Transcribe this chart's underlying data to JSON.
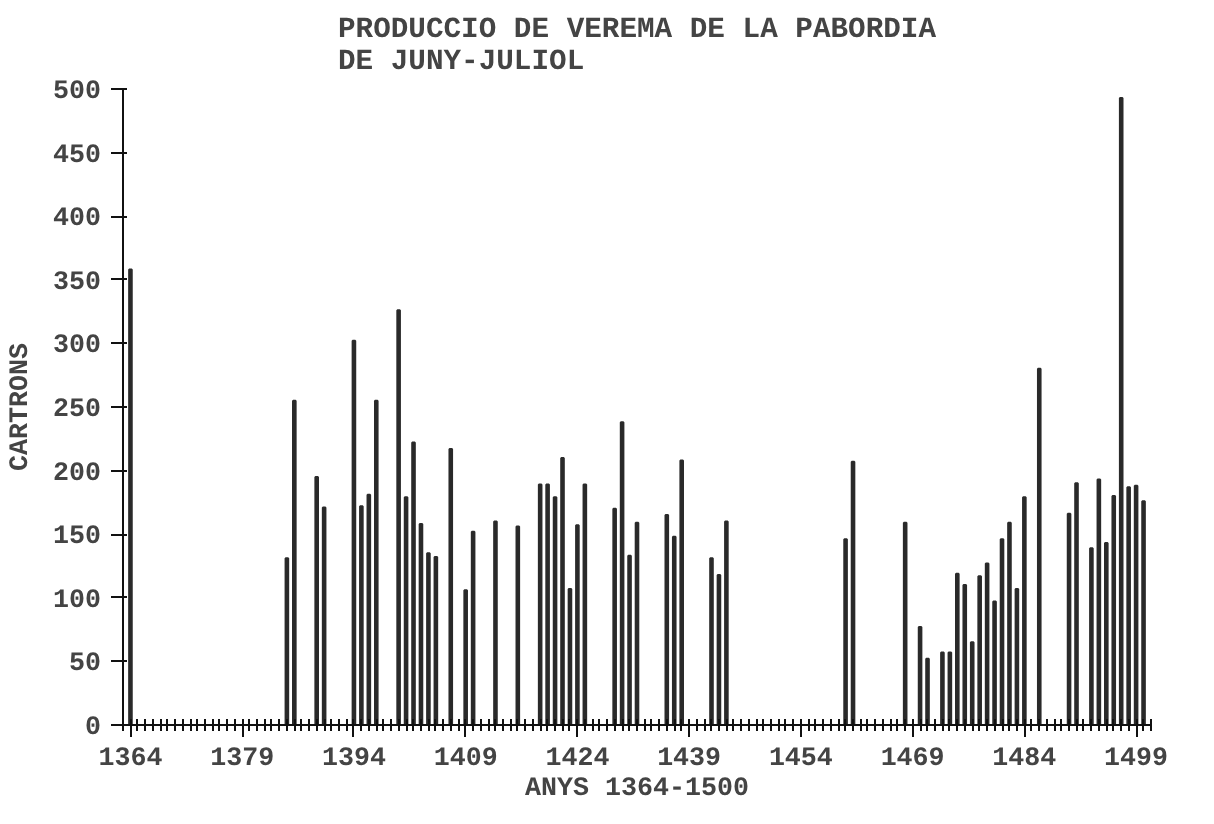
{
  "chart_data": {
    "type": "bar",
    "title": "PRODUCCIO DE VEREMA DE LA PABORDIA\nDE JUNY-JULIOL",
    "xlabel": "ANYS 1364-1500",
    "ylabel": "CARTRONS",
    "color": "#2a2a2a",
    "x": [
      1364,
      1385,
      1386,
      1389,
      1390,
      1394,
      1395,
      1396,
      1397,
      1400,
      1401,
      1402,
      1403,
      1404,
      1405,
      1407,
      1409,
      1410,
      1413,
      1416,
      1419,
      1420,
      1421,
      1422,
      1423,
      1424,
      1425,
      1429,
      1430,
      1431,
      1432,
      1436,
      1437,
      1438,
      1442,
      1443,
      1444,
      1460,
      1461,
      1468,
      1470,
      1471,
      1473,
      1474,
      1475,
      1476,
      1477,
      1478,
      1479,
      1480,
      1481,
      1482,
      1483,
      1484,
      1486,
      1490,
      1491,
      1493,
      1494,
      1495,
      1496,
      1497,
      1498,
      1499,
      1500
    ],
    "values": [
      358,
      131,
      255,
      195,
      171,
      302,
      172,
      181,
      255,
      326,
      179,
      222,
      158,
      135,
      132,
      217,
      106,
      152,
      160,
      156,
      189,
      189,
      179,
      210,
      107,
      157,
      189,
      170,
      238,
      133,
      159,
      165,
      148,
      208,
      131,
      118,
      160,
      146,
      207,
      159,
      77,
      52,
      57,
      57,
      119,
      110,
      65,
      117,
      127,
      97,
      146,
      159,
      107,
      179,
      280,
      166,
      190,
      139,
      193,
      143,
      180,
      493,
      187,
      188,
      176
    ],
    "xlim": [
      1363,
      1501
    ],
    "xticks": [
      1364,
      1379,
      1394,
      1409,
      1424,
      1439,
      1454,
      1469,
      1484,
      1499
    ],
    "ylim": [
      0,
      500
    ],
    "yticks": [
      0,
      50,
      100,
      150,
      200,
      250,
      300,
      350,
      400,
      450,
      500
    ],
    "grid": false
  }
}
